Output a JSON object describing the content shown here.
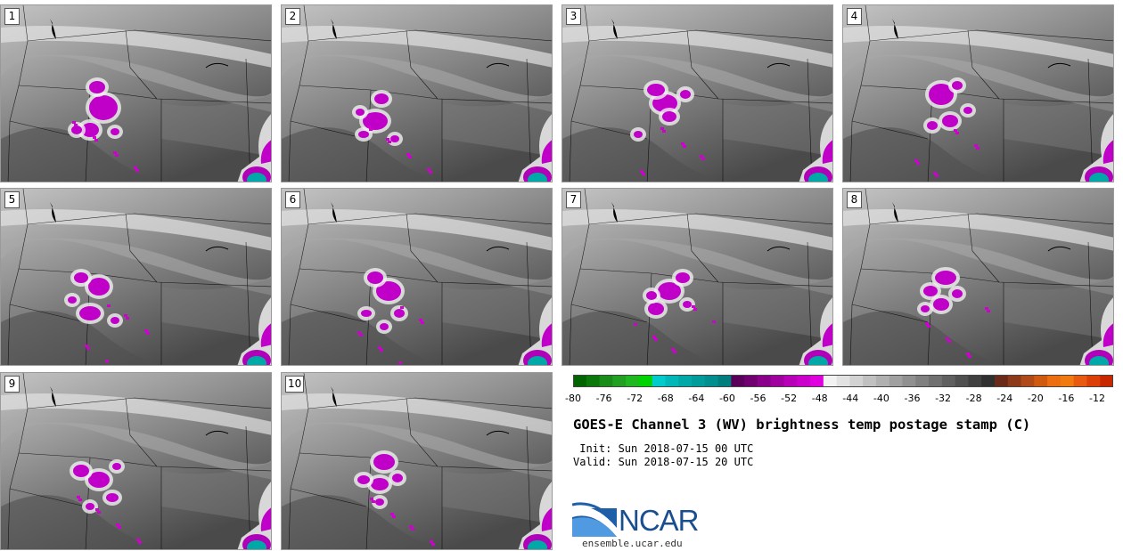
{
  "panels": [
    {
      "number": "1"
    },
    {
      "number": "2"
    },
    {
      "number": "3"
    },
    {
      "number": "4"
    },
    {
      "number": "5"
    },
    {
      "number": "6"
    },
    {
      "number": "7"
    },
    {
      "number": "8"
    },
    {
      "number": "9"
    },
    {
      "number": "10"
    }
  ],
  "colorbar": {
    "ticks": [
      "-80",
      "-76",
      "-72",
      "-68",
      "-64",
      "-60",
      "-56",
      "-52",
      "-48",
      "-44",
      "-40",
      "-36",
      "-32",
      "-28",
      "-24",
      "-20",
      "-16",
      "-12"
    ],
    "colors": [
      "#006400",
      "#0a780a",
      "#1a8c1a",
      "#22a022",
      "#20b820",
      "#00d400",
      "#00cccc",
      "#00b8b8",
      "#00a8a8",
      "#009c9c",
      "#008e8e",
      "#007e7e",
      "#5a005a",
      "#700070",
      "#8a008a",
      "#a000a0",
      "#b800b8",
      "#cc00cc",
      "#e000e0",
      "#f2f2f2",
      "#e2e2e2",
      "#d2d2d2",
      "#c0c0c0",
      "#b0b0b0",
      "#a0a0a0",
      "#909090",
      "#808080",
      "#707070",
      "#606060",
      "#505050",
      "#404040",
      "#303030",
      "#6a2a1a",
      "#8c3a1a",
      "#b04a18",
      "#d05a10",
      "#ec6e10",
      "#f07a10",
      "#e85a10",
      "#dc4008",
      "#c82800"
    ]
  },
  "title": "GOES-E Channel 3 (WV) brightness temp postage stamp (C)",
  "init": " Init: Sun 2018-07-15 00 UTC",
  "valid": "Valid: Sun 2018-07-15 20 UTC",
  "logo": {
    "text": "NCAR",
    "url": "ensemble.ucar.edu",
    "brand_color": "#1a4f8f"
  }
}
